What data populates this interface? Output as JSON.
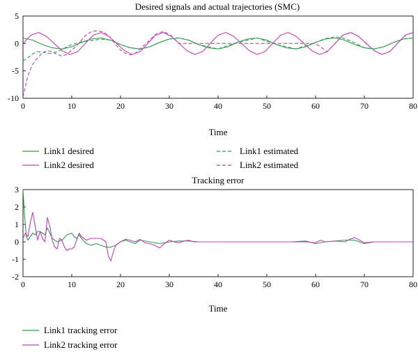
{
  "colors": {
    "link1": "#2e9a4a",
    "link2": "#c43fb8",
    "axis": "#222222"
  },
  "chart_data": [
    {
      "type": "line",
      "title": "Desired signals and actual trajectories (SMC)",
      "xlabel": "Time",
      "ylabel": "",
      "xlim": [
        0,
        80
      ],
      "ylim": [
        -10,
        5
      ],
      "xticks": [
        0,
        10,
        20,
        30,
        40,
        50,
        60,
        70,
        80
      ],
      "yticks": [
        5,
        0,
        -5,
        -10
      ],
      "grid": false,
      "legend_position": "bottom",
      "series": [
        {
          "name": "Link1 desired",
          "color": "#2e9a4a",
          "style": "solid",
          "x": [
            0,
            2,
            4,
            6,
            8,
            10,
            12,
            14,
            16,
            18,
            20,
            22,
            24,
            26,
            28,
            30,
            32,
            34,
            36,
            38,
            40,
            42,
            44,
            46,
            48,
            50,
            52,
            54,
            56,
            58,
            60,
            62,
            64,
            66,
            68,
            70,
            72,
            74,
            76,
            78,
            80
          ],
          "values": [
            1.0,
            0.6,
            -0.2,
            -0.8,
            -1.0,
            -0.6,
            0.2,
            0.8,
            1.0,
            0.6,
            -0.2,
            -0.8,
            -1.0,
            -0.6,
            0.2,
            0.8,
            1.0,
            0.6,
            -0.2,
            -0.8,
            -1.0,
            -0.6,
            0.2,
            0.8,
            1.0,
            0.6,
            -0.2,
            -0.8,
            -1.0,
            -0.6,
            0.2,
            0.8,
            1.0,
            0.6,
            -0.2,
            -0.8,
            -1.0,
            -0.6,
            0.2,
            0.8,
            1.0
          ]
        },
        {
          "name": "Link2 desired",
          "color": "#c43fb8",
          "style": "solid",
          "x": [
            0,
            1.6,
            3.2,
            4.8,
            6.4,
            8,
            9.6,
            11.2,
            12.8,
            14.4,
            16,
            17.6,
            19.2,
            20.8,
            22.4,
            24,
            25.6,
            27.2,
            28.8,
            30.4,
            32,
            33.6,
            35.2,
            36.8,
            38.4,
            40,
            41.6,
            43.2,
            44.8,
            46.4,
            48,
            49.6,
            51.2,
            52.8,
            54.4,
            56,
            57.6,
            59.2,
            60.8,
            62.4,
            64,
            65.6,
            67.2,
            68.8,
            70.4,
            72,
            73.6,
            75.2,
            76.8,
            78.4,
            80
          ],
          "values": [
            0,
            1.5,
            2.0,
            1.3,
            0,
            -1.3,
            -2.0,
            -1.5,
            0,
            1.5,
            2.0,
            1.3,
            0,
            -1.3,
            -2.0,
            -1.5,
            0,
            1.5,
            2.0,
            1.3,
            0,
            -1.3,
            -2.0,
            -1.5,
            0,
            1.5,
            2.0,
            1.3,
            0,
            -1.3,
            -2.0,
            -1.5,
            0,
            1.5,
            2.0,
            1.3,
            0,
            -1.3,
            -2.0,
            -1.5,
            0,
            1.5,
            2.0,
            1.3,
            0,
            -1.3,
            -2.0,
            -1.5,
            0,
            1.5,
            2.0
          ]
        },
        {
          "name": "Link1 estimated",
          "color": "#2e9a4a",
          "style": "dashed",
          "x": [
            0,
            1,
            2,
            3,
            4,
            5,
            6,
            7,
            8,
            9,
            10,
            12,
            14,
            16,
            18,
            20,
            22,
            24,
            26,
            28,
            30,
            32,
            34,
            36,
            40,
            44,
            48,
            52,
            56,
            60,
            62,
            64,
            66,
            68,
            70,
            72,
            74,
            76,
            78,
            80
          ],
          "values": [
            -3.2,
            -2.6,
            -1.9,
            -1.5,
            -1.6,
            -1.8,
            -1.8,
            -1.5,
            -1.1,
            -0.6,
            -0.2,
            0.3,
            0.5,
            0.8,
            0.6,
            -0.2,
            -0.8,
            -1.0,
            -0.6,
            0.2,
            0.8,
            1.0,
            0.6,
            -0.2,
            -1.0,
            0.2,
            1.0,
            -0.2,
            -1.0,
            0.2,
            0.9,
            1.2,
            0.9,
            0.1,
            -0.8,
            -1.0,
            -0.6,
            0.2,
            0.8,
            1.0
          ]
        },
        {
          "name": "Link2 estimated",
          "color": "#c43fb8",
          "style": "dashed",
          "x": [
            0,
            0.5,
            1,
            1.5,
            2,
            3,
            4,
            5,
            6,
            7,
            8,
            9,
            10,
            11,
            12,
            13,
            14,
            15,
            16,
            17,
            18,
            19,
            20,
            21,
            22,
            23,
            24,
            25.6,
            27.2,
            28.8,
            30.4,
            32,
            36,
            40,
            44,
            48,
            52,
            56,
            60,
            62.4,
            64,
            65.6,
            67.2,
            68.8,
            70.4,
            72,
            73.6,
            75.2,
            76.8,
            78.4,
            80
          ],
          "values": [
            -9.8,
            -7.8,
            -6.0,
            -4.8,
            -3.8,
            -2.6,
            -1.7,
            -1.3,
            -1.5,
            -2.0,
            -2.3,
            -2.0,
            -1.2,
            -0.4,
            0.6,
            1.6,
            2.1,
            2.3,
            2.2,
            1.8,
            1.0,
            -0.2,
            -1.2,
            -1.8,
            -2.1,
            -1.8,
            -1.0,
            0.3,
            1.7,
            2.2,
            1.4,
            0,
            0,
            0,
            0,
            0,
            0,
            0,
            0,
            -1.5,
            0,
            1.5,
            2.0,
            1.3,
            0,
            -1.3,
            -2.0,
            -1.5,
            0,
            1.5,
            2.0
          ]
        }
      ]
    },
    {
      "type": "line",
      "title": "Tracking error",
      "xlabel": "Time",
      "ylabel": "",
      "xlim": [
        0,
        80
      ],
      "ylim": [
        -2,
        3
      ],
      "xticks": [
        0,
        10,
        20,
        30,
        40,
        50,
        60,
        70,
        80
      ],
      "yticks": [
        3,
        2,
        1,
        0,
        -1,
        -2
      ],
      "grid": false,
      "legend_position": "bottom",
      "series": [
        {
          "name": "Link1 tracking error",
          "color": "#2e9a4a",
          "style": "solid",
          "x": [
            0,
            0.3,
            0.7,
            1,
            1.5,
            2,
            2.5,
            3,
            3.5,
            4,
            4.5,
            5,
            5.5,
            6,
            7,
            8,
            9,
            10,
            10.5,
            11,
            11.5,
            12,
            13,
            14,
            15,
            16,
            17,
            18,
            19,
            20,
            21,
            22,
            23,
            24,
            26,
            28,
            30,
            32,
            34,
            36,
            38,
            40,
            45,
            50,
            55,
            58,
            60,
            62,
            64,
            66,
            68,
            70,
            72,
            75,
            80
          ],
          "values": [
            3.0,
            1.6,
            0.3,
            0.1,
            0.3,
            0.5,
            0.4,
            0.6,
            0.6,
            0.5,
            0.4,
            0.8,
            0.5,
            0.2,
            0.0,
            0.1,
            0.4,
            0.5,
            0.3,
            0.2,
            0.4,
            0.2,
            -0.1,
            -0.2,
            -0.1,
            -0.2,
            -0.3,
            -0.3,
            -0.2,
            0.0,
            0.1,
            0.0,
            -0.1,
            0.1,
            0.0,
            -0.1,
            0.0,
            0.05,
            0.05,
            0.0,
            0.0,
            0.0,
            0.0,
            0.0,
            0.0,
            0.05,
            -0.1,
            0.0,
            0.05,
            0.1,
            0.1,
            -0.1,
            0.0,
            0.0,
            0.0
          ]
        },
        {
          "name": "Link2 tracking error",
          "color": "#c43fb8",
          "style": "solid",
          "x": [
            0,
            0.5,
            1,
            1.5,
            2,
            2.5,
            3,
            3.5,
            4,
            4.5,
            5,
            5.5,
            6,
            6.5,
            7,
            7.5,
            8,
            8.5,
            9,
            9.5,
            10,
            10.5,
            11,
            11.5,
            12,
            13,
            14,
            15,
            16,
            17,
            17.5,
            18,
            18.5,
            19,
            20,
            21,
            22,
            23,
            24,
            25,
            26,
            27,
            28,
            29,
            30,
            31,
            32,
            33,
            34,
            35,
            36,
            38,
            40,
            45,
            50,
            55,
            58,
            60,
            61,
            62,
            64,
            66,
            67,
            68,
            69,
            70,
            72,
            75,
            80
          ],
          "values": [
            0.2,
            0.5,
            0.3,
            1.1,
            1.7,
            0.9,
            0.1,
            0.6,
            0.2,
            0.0,
            1.4,
            0.9,
            0.1,
            -0.3,
            -0.4,
            0.2,
            0.1,
            -0.3,
            -0.5,
            -0.4,
            -0.4,
            -0.3,
            0.1,
            0.5,
            0.3,
            0.1,
            0.2,
            0.2,
            0.2,
            0.0,
            -0.8,
            -1.1,
            -0.6,
            -0.2,
            0.0,
            0.15,
            0.1,
            0.0,
            0.15,
            -0.05,
            -0.1,
            -0.2,
            -0.35,
            -0.1,
            0.1,
            0.0,
            -0.05,
            0.05,
            0.1,
            0.0,
            0.0,
            0.0,
            0.0,
            0.0,
            0.0,
            0.0,
            0.0,
            -0.05,
            0.1,
            0.0,
            0.05,
            0.0,
            0.15,
            0.25,
            0.1,
            -0.05,
            0.0,
            0.0,
            0.0
          ]
        }
      ]
    }
  ]
}
